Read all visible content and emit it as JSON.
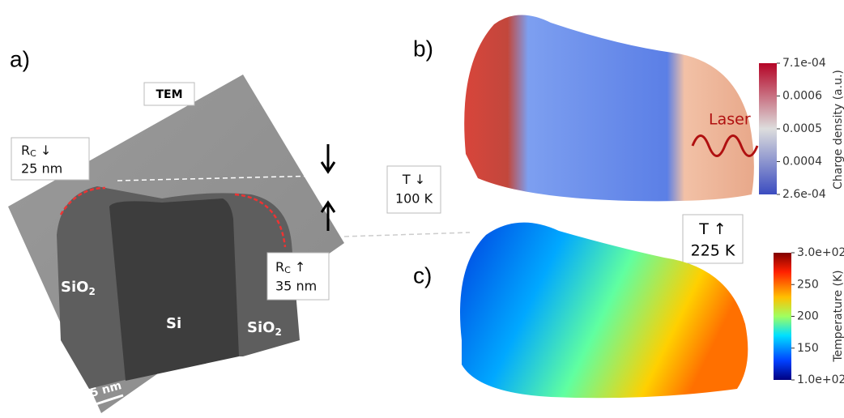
{
  "panel_a": {
    "label": "a)",
    "badge": "TEM",
    "callouts": [
      {
        "symbol": "R",
        "subscript": "C",
        "arrow": "↓",
        "value": "25 nm"
      },
      {
        "symbol": "R",
        "subscript": "C",
        "arrow": "↑",
        "value": "35 nm"
      }
    ],
    "materials": [
      {
        "text": "SiO",
        "subscript": "2"
      },
      {
        "text": "Si"
      },
      {
        "text": "SiO",
        "subscript": "2"
      }
    ],
    "scale_bar": "5 nm"
  },
  "panel_b": {
    "label": "b)",
    "annotation": "Laser",
    "colorbar": {
      "title": "Charge density (a.u.)",
      "ticks": [
        "7.1e-04",
        "0.0006",
        "0.0005",
        "0.0004",
        "2.6e-04"
      ]
    }
  },
  "panel_c": {
    "label": "c)",
    "colorbar": {
      "title": "Temperature (K)",
      "ticks": [
        "3.0e+02",
        "250",
        "200",
        "150",
        "1.0e+02"
      ]
    }
  },
  "temperature_callouts": [
    {
      "symbol": "T",
      "arrow": "↓",
      "value": "100 K"
    },
    {
      "symbol": "T",
      "arrow": "↑",
      "value": "225 K"
    }
  ]
}
